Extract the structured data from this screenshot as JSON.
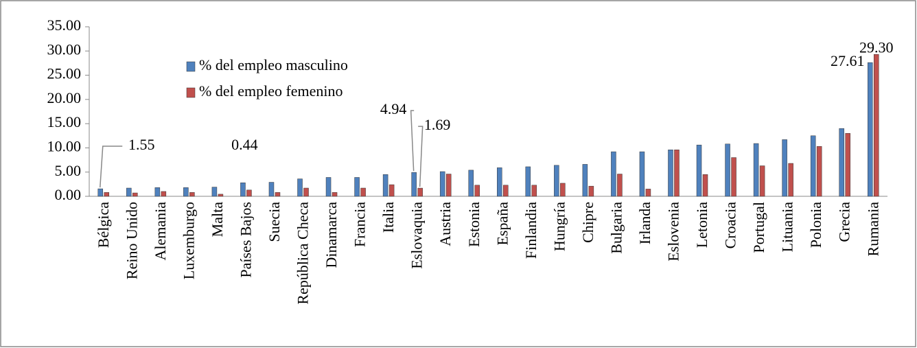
{
  "chart_data": {
    "type": "bar",
    "categories": [
      "Bélgica",
      "Reino Unido",
      "Alemania",
      "Luxemburgo",
      "Malta",
      "Países Bajos",
      "Suecia",
      "República Checa",
      "Dinamarca",
      "Francia",
      "Italia",
      "Eslovaquia",
      "Austria",
      "Estonia",
      "España",
      "Finlandia",
      "Hungría",
      "Chipre",
      "Bulgaria",
      "Irlanda",
      "Eslovenia",
      "Letonia",
      "Croacia",
      "Portugal",
      "Lituania",
      "Polonia",
      "Grecia",
      "Rumania"
    ],
    "series": [
      {
        "name": "% del empleo masculino",
        "color": "#4f81bd",
        "values": [
          1.55,
          1.7,
          1.8,
          1.8,
          1.9,
          2.8,
          2.9,
          3.6,
          3.9,
          3.9,
          4.5,
          4.94,
          5.1,
          5.4,
          5.9,
          6.1,
          6.4,
          6.6,
          9.2,
          9.2,
          9.6,
          10.6,
          10.8,
          10.9,
          11.7,
          12.5,
          14.0,
          27.61
        ],
        "value_labels": [
          "1.55",
          null,
          null,
          null,
          null,
          null,
          null,
          null,
          null,
          null,
          null,
          "4.94",
          null,
          null,
          null,
          null,
          null,
          null,
          null,
          null,
          null,
          null,
          null,
          null,
          null,
          null,
          null,
          "27.61"
        ]
      },
      {
        "name": "% del empleo femenino",
        "color": "#c0504d",
        "values": [
          0.8,
          0.7,
          1.0,
          0.8,
          0.44,
          1.3,
          0.8,
          1.7,
          0.8,
          1.7,
          2.4,
          1.69,
          4.6,
          2.3,
          2.3,
          2.3,
          2.7,
          2.1,
          4.6,
          1.5,
          9.6,
          4.5,
          8.0,
          6.3,
          6.8,
          10.3,
          13.0,
          29.3
        ],
        "value_labels": [
          null,
          null,
          null,
          null,
          "0.44",
          null,
          null,
          null,
          null,
          null,
          null,
          "1.69",
          null,
          null,
          null,
          null,
          null,
          null,
          null,
          null,
          null,
          null,
          null,
          null,
          null,
          null,
          null,
          "29.30"
        ]
      }
    ],
    "ylim": [
      0,
      35
    ],
    "yticks": [
      {
        "value": 0,
        "label": "0.00"
      },
      {
        "value": 5,
        "label": "5.00"
      },
      {
        "value": 10,
        "label": "10.00"
      },
      {
        "value": 15,
        "label": "15.00"
      },
      {
        "value": 20,
        "label": "20.00"
      },
      {
        "value": 25,
        "label": "25.00"
      },
      {
        "value": 30,
        "label": "30.00"
      },
      {
        "value": 35,
        "label": "35.00"
      }
    ],
    "grid": false,
    "legend": "top-left"
  }
}
